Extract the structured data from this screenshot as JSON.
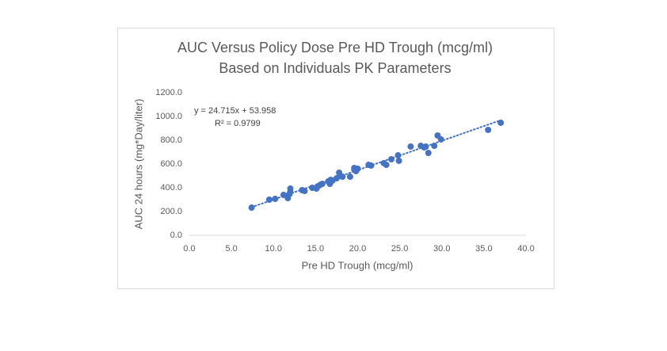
{
  "chart_data": {
    "type": "scatter",
    "title": "AUC Versus Policy Dose Pre HD Trough (mcg/ml)",
    "subtitle": "Based on Individuals PK Parameters",
    "x_label": "Pre HD Trough (mcg/ml)",
    "y_label": "AUC 24 hours (mg*Day/liter)",
    "color": "#4472c4",
    "x": [
      7.4,
      9.5,
      10.2,
      11.2,
      11.7,
      12.0,
      11.9,
      12.0,
      13.4,
      13.7,
      14.6,
      15.1,
      15.3,
      15.6,
      15.8,
      16.5,
      16.8,
      16.7,
      17.0,
      17.5,
      17.9,
      17.8,
      18.2,
      19.1,
      19.6,
      19.8,
      20.0,
      19.6,
      21.3,
      21.6,
      23.1,
      23.4,
      24.0,
      24.8,
      24.9,
      26.3,
      27.5,
      27.9,
      28.1,
      28.4,
      29.1,
      29.5,
      29.9,
      35.5,
      37.0
    ],
    "values": [
      233,
      300,
      307,
      340,
      313,
      393,
      347,
      367,
      380,
      373,
      400,
      393,
      413,
      427,
      433,
      453,
      467,
      433,
      460,
      480,
      500,
      527,
      493,
      493,
      567,
      540,
      560,
      553,
      593,
      587,
      607,
      593,
      640,
      673,
      627,
      747,
      753,
      740,
      747,
      693,
      753,
      840,
      807,
      887,
      947
    ],
    "xlim": [
      0,
      40
    ],
    "ylim": [
      0,
      1200
    ],
    "xticks": [
      {
        "value": 0,
        "label": "0.0"
      },
      {
        "value": 5,
        "label": "5.0"
      },
      {
        "value": 10,
        "label": "10.0"
      },
      {
        "value": 15,
        "label": "15.0"
      },
      {
        "value": 20,
        "label": "20.0"
      },
      {
        "value": 25,
        "label": "25.0"
      },
      {
        "value": 30,
        "label": "30.0"
      },
      {
        "value": 35,
        "label": "35.0"
      },
      {
        "value": 40,
        "label": "40.0"
      }
    ],
    "yticks": [
      {
        "value": 0,
        "label": "0.0"
      },
      {
        "value": 200,
        "label": "200.0"
      },
      {
        "value": 400,
        "label": "400.0"
      },
      {
        "value": 600,
        "label": "600.0"
      },
      {
        "value": 800,
        "label": "800.0"
      },
      {
        "value": 1000,
        "label": "1000.0"
      },
      {
        "value": 1200,
        "label": "1200.0"
      }
    ],
    "trendline": {
      "equation": "y = 24.715x + 53.958",
      "r2": "R² = 0.9799",
      "slope": 24.715,
      "intercept": 53.958,
      "x_range": [
        7.4,
        37.0
      ]
    }
  }
}
